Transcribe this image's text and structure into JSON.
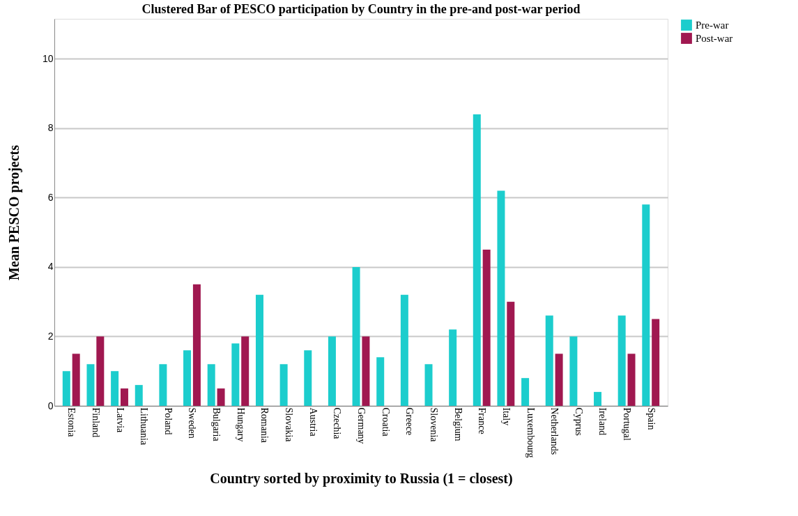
{
  "chart_data": {
    "type": "bar",
    "title": "Clustered Bar of PESCO participation by Country in the pre-and post-war period",
    "xlabel": "Country sorted by proximity to Russia (1 = closest)",
    "ylabel": "Mean PESCO projects",
    "categories": [
      "Estonia",
      "Finland",
      "Latvia",
      "Lithuania",
      "Poland",
      "Sweden",
      "Bulgaria",
      "Hungary",
      "Romania",
      "Slovakia",
      "Austria",
      "Czechia",
      "Germany",
      "Croatia",
      "Greece",
      "Slovenia",
      "Belgium",
      "France",
      "Italy",
      "Luxembourg",
      "Netherlands",
      "Cyprus",
      "Ireland",
      "Portugal",
      "Spain"
    ],
    "series": [
      {
        "name": "Pre-war",
        "color": "#1ccdcd",
        "values": [
          1.0,
          1.2,
          1.0,
          0.6,
          1.2,
          1.6,
          1.2,
          1.8,
          3.2,
          1.2,
          1.6,
          2.0,
          4.0,
          1.4,
          3.2,
          1.2,
          2.2,
          8.4,
          6.2,
          0.8,
          2.6,
          2.0,
          0.4,
          2.6,
          5.8
        ]
      },
      {
        "name": "Post-war",
        "color": "#a01850",
        "values": [
          1.5,
          2.0,
          0.5,
          null,
          null,
          3.5,
          0.5,
          2.0,
          null,
          null,
          null,
          null,
          2.0,
          null,
          null,
          null,
          null,
          4.5,
          3.0,
          null,
          1.5,
          null,
          null,
          1.5,
          2.5
        ]
      }
    ],
    "ylim": [
      0,
      11.15
    ],
    "yticks": [
      0,
      2,
      4,
      6,
      8,
      10
    ],
    "grid": "y",
    "legend": "top right"
  }
}
